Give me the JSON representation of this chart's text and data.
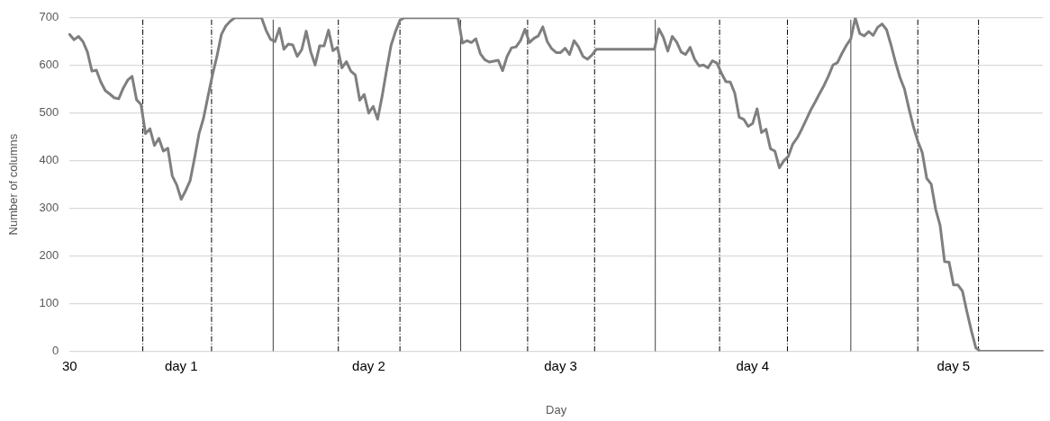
{
  "chart_data": {
    "type": "line",
    "xlabel": "Day",
    "ylabel": "Number of columns",
    "categories": [
      "30",
      null,
      null,
      null,
      null,
      null,
      null,
      null,
      null,
      null,
      null,
      null,
      null,
      null,
      null,
      null,
      null,
      null,
      null,
      null,
      null,
      null,
      null,
      null,
      null,
      "day 1",
      null,
      null,
      null,
      null,
      null,
      null,
      null,
      null,
      null,
      null,
      null,
      null,
      null,
      null,
      null,
      null,
      null,
      null,
      null,
      null,
      null,
      null,
      null,
      null,
      null,
      null,
      null,
      null,
      null,
      null,
      null,
      null,
      null,
      null,
      null,
      null,
      null,
      null,
      null,
      null,
      null,
      "day 2",
      null,
      null,
      null,
      null,
      null,
      null,
      null,
      null,
      null,
      null,
      null,
      null,
      null,
      null,
      null,
      null,
      null,
      null,
      null,
      null,
      null,
      null,
      null,
      null,
      null,
      null,
      null,
      null,
      null,
      null,
      null,
      null,
      null,
      null,
      null,
      null,
      null,
      null,
      null,
      null,
      null,
      null,
      "day 3",
      null,
      null,
      null,
      null,
      null,
      null,
      null,
      null,
      null,
      null,
      null,
      null,
      null,
      null,
      null,
      null,
      null,
      null,
      null,
      null,
      null,
      null,
      null,
      null,
      null,
      null,
      null,
      null,
      null,
      null,
      null,
      null,
      null,
      null,
      null,
      null,
      null,
      null,
      null,
      null,
      null,
      null,
      "day 4",
      null,
      null,
      null,
      null,
      null,
      null,
      null,
      null,
      null,
      null,
      null,
      null,
      null,
      null,
      null,
      null,
      null,
      null,
      null,
      null,
      null,
      null,
      null,
      null,
      null,
      null,
      null,
      null,
      null,
      null,
      null,
      null,
      null,
      null,
      null,
      null,
      null,
      null,
      null,
      null,
      null,
      null,
      null,
      null,
      "day 5",
      null,
      null,
      null,
      null,
      null,
      null,
      null,
      null,
      null,
      null,
      null,
      null,
      null,
      null,
      null,
      null,
      null,
      null,
      null,
      null
    ],
    "series": [
      {
        "color": "#7f7f7f",
        "values": [
          665,
          654,
          661,
          650,
          628,
          588,
          590,
          565,
          547,
          540,
          532,
          530,
          552,
          569,
          577,
          528,
          518,
          457,
          467,
          432,
          447,
          420,
          426,
          368,
          349,
          319,
          337,
          358,
          406,
          457,
          489,
          535,
          580,
          619,
          665,
          683,
          693,
          700,
          700,
          700,
          700,
          700,
          700,
          700,
          674,
          655,
          650,
          678,
          634,
          645,
          643,
          619,
          633,
          672,
          629,
          601,
          641,
          641,
          674,
          631,
          638,
          595,
          608,
          588,
          580,
          527,
          539,
          500,
          514,
          487,
          535,
          590,
          642,
          671,
          695,
          700,
          700,
          700,
          700,
          700,
          700,
          700,
          700,
          700,
          700,
          700,
          700,
          700,
          647,
          652,
          648,
          656,
          625,
          612,
          607,
          609,
          611,
          589,
          619,
          637,
          639,
          652,
          676,
          648,
          657,
          662,
          681,
          650,
          635,
          627,
          627,
          636,
          623,
          652,
          639,
          619,
          613,
          622,
          634,
          634,
          634,
          634,
          634,
          634,
          634,
          634,
          634,
          634,
          634,
          634,
          634,
          634,
          677,
          659,
          630,
          661,
          649,
          628,
          623,
          638,
          613,
          599,
          601,
          595,
          610,
          605,
          584,
          566,
          565,
          542,
          491,
          487,
          472,
          478,
          509,
          459,
          466,
          425,
          420,
          385,
          400,
          409,
          435,
          448,
          466,
          486,
          506,
          523,
          541,
          558,
          578,
          601,
          606,
          625,
          642,
          656,
          700,
          667,
          662,
          671,
          663,
          680,
          687,
          675,
          643,
          607,
          575,
          551,
          510,
          472,
          441,
          417,
          363,
          351,
          298,
          264,
          188,
          187,
          139,
          139,
          126,
          83,
          43,
          7,
          0,
          0,
          0,
          0,
          0,
          0,
          0,
          0,
          0,
          0,
          0,
          0,
          0,
          0,
          0
        ]
      }
    ],
    "ylim": [
      0,
      700
    ],
    "yticks": [
      0,
      100,
      200,
      300,
      400,
      500,
      600,
      700
    ],
    "grid": "y",
    "marker": "none",
    "line_style": "solid"
  }
}
